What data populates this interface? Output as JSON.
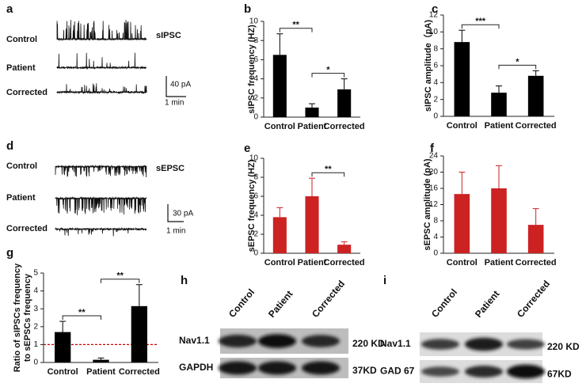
{
  "chart_data": [
    {
      "type": "bar",
      "panel_label": "b",
      "ylabel": "sIPSC frequency (HZ)",
      "categories": [
        "Control",
        "Patient",
        "Corrected"
      ],
      "values": [
        6.5,
        1.0,
        2.9
      ],
      "errors": [
        2.2,
        0.4,
        1.1
      ],
      "color": "#000000",
      "ylim": [
        0,
        10
      ],
      "yticks": [
        0,
        2,
        4,
        6,
        8,
        10
      ],
      "annotations": [
        {
          "text": "**",
          "between": [
            "Control",
            "Patient"
          ]
        },
        {
          "text": "*",
          "between": [
            "Patient",
            "Corrected"
          ]
        }
      ]
    },
    {
      "type": "bar",
      "panel_label": "c",
      "ylabel": "sIPSC amplitude（pA)",
      "categories": [
        "Control",
        "Patient",
        "Corrected"
      ],
      "values": [
        8.8,
        2.8,
        4.8
      ],
      "errors": [
        1.4,
        0.8,
        0.6
      ],
      "color": "#000000",
      "ylim": [
        0,
        12
      ],
      "yticks": [
        0,
        2,
        4,
        6,
        8,
        10,
        12
      ],
      "annotations": [
        {
          "text": "***",
          "between": [
            "Control",
            "Patient"
          ]
        },
        {
          "text": "*",
          "between": [
            "Patient",
            "Corrected"
          ]
        }
      ]
    },
    {
      "type": "bar",
      "panel_label": "e",
      "ylabel": "sEPSC frequency (HZ)",
      "categories": [
        "Control",
        "Patient",
        "Corrected"
      ],
      "values": [
        3.8,
        6.0,
        0.9
      ],
      "errors": [
        1.0,
        1.9,
        0.3
      ],
      "color": "#cc2222",
      "ylim": [
        0,
        10
      ],
      "yticks": [
        0,
        2,
        4,
        6,
        8,
        10
      ],
      "annotations": [
        {
          "text": "**",
          "between": [
            "Patient",
            "Corrected"
          ]
        }
      ]
    },
    {
      "type": "bar",
      "panel_label": "f",
      "ylabel": "sEPSC amplitude (pA)",
      "categories": [
        "Control",
        "Patient",
        "Corrected"
      ],
      "values": [
        14.6,
        16.0,
        7.0
      ],
      "errors": [
        5.4,
        5.6,
        4.0
      ],
      "color": "#cc2222",
      "ylim": [
        0,
        24
      ],
      "yticks": [
        0,
        4,
        8,
        12,
        16,
        20,
        24
      ],
      "annotations": []
    },
    {
      "type": "bar",
      "panel_label": "g",
      "ylabel": [
        "Ratio of sIPSCs frequency",
        "to sEPSCs frequency"
      ],
      "categories": [
        "Control",
        "Patient",
        "Corrected"
      ],
      "values": [
        1.7,
        0.15,
        3.15
      ],
      "errors": [
        0.6,
        0.1,
        1.2
      ],
      "color": "#000000",
      "ylim": [
        0,
        5
      ],
      "yticks": [
        0,
        1,
        2,
        3,
        4,
        5
      ],
      "reference_line": {
        "value": 1,
        "color": "#cc0000"
      },
      "annotations": [
        {
          "text": "**",
          "between": [
            "Control",
            "Patient"
          ]
        },
        {
          "text": "**",
          "between": [
            "Patient",
            "Corrected"
          ]
        }
      ]
    }
  ],
  "traces": [
    {
      "panel_label": "a",
      "rows": [
        "Control",
        "Patient",
        "Corrected"
      ],
      "signal": "sIPSC",
      "scale_y": "40 pA",
      "scale_x": "1 min"
    },
    {
      "panel_label": "d",
      "rows": [
        "Control",
        "Patient",
        "Corrected"
      ],
      "signal": "sEPSC",
      "scale_y": "30 pA",
      "scale_x": "1 min"
    }
  ],
  "blots": [
    {
      "panel_label": "h",
      "lanes": [
        "Control",
        "Patient",
        "Corrected"
      ],
      "rows": [
        {
          "name": "Nav1.1",
          "size": "220 KD"
        },
        {
          "name": "GAPDH",
          "size": "37KD"
        }
      ]
    },
    {
      "panel_label": "i",
      "lanes": [
        "Control",
        "Patient",
        "Corrected"
      ],
      "rows": [
        {
          "name": "Nav1.1",
          "size": "220 KD"
        },
        {
          "name": "GAD 67",
          "size": "67KD"
        }
      ]
    }
  ]
}
